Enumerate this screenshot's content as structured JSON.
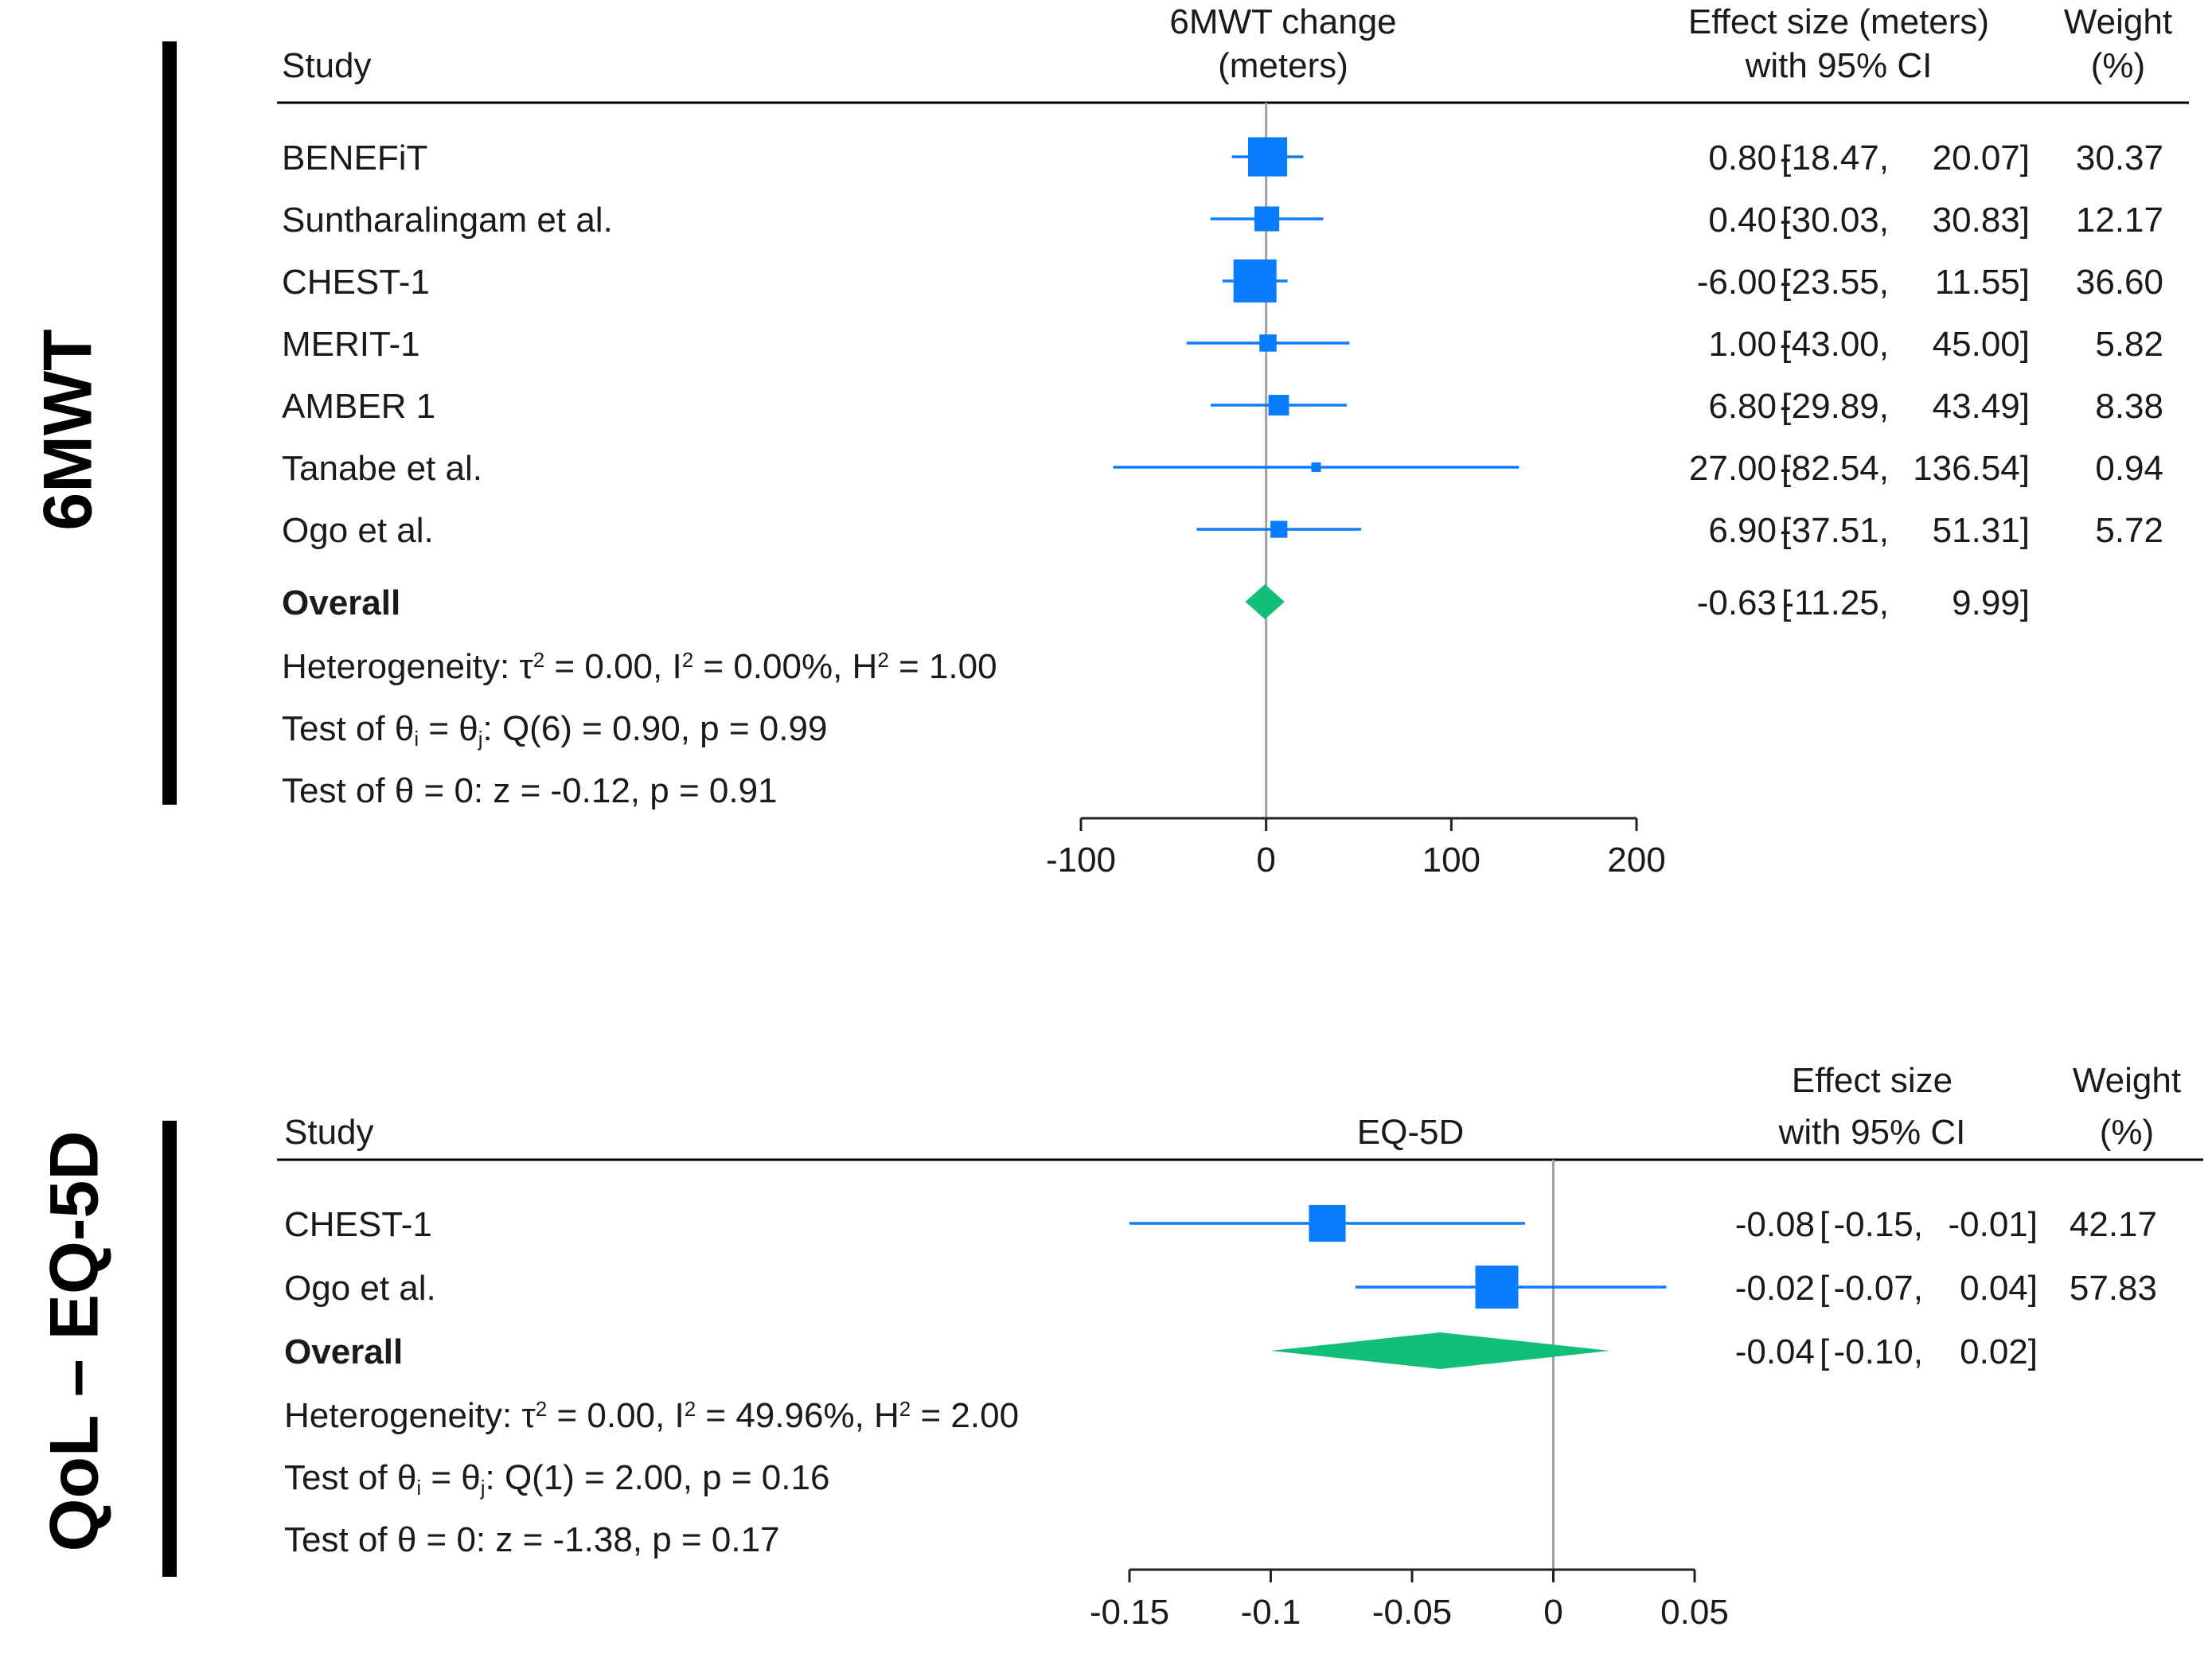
{
  "colors": {
    "square": "#0a7cff",
    "ci_line": "#0a7cff",
    "overall_diamond": "#12bf79",
    "axis": "#222222",
    "reference_line": "#a0a0a0",
    "side_bar": "#000000"
  },
  "chart_data": [
    {
      "type": "forest",
      "panel_label": "6MWT",
      "header": {
        "study": "Study",
        "plot_title_1": "6MWT change",
        "plot_title_2": "(meters)",
        "effect_1": "Effect size (meters)",
        "effect_2": "with 95% CI",
        "weight_1": "Weight",
        "weight_2": "(%)"
      },
      "xlim": [
        -100,
        200
      ],
      "ticks": [
        -100,
        0,
        100,
        200
      ],
      "tick_labels": [
        "-100",
        "0",
        "100",
        "200"
      ],
      "null_value": 0,
      "studies": [
        {
          "name": "BENEFiT",
          "est": 0.8,
          "lo": -18.47,
          "hi": 20.07,
          "weight": 30.37,
          "est_text": "0.80",
          "lo_text": "-18.47,",
          "hi_text": "20.07]",
          "weight_text": "30.37"
        },
        {
          "name": "Suntharalingam et al.",
          "est": 0.4,
          "lo": -30.03,
          "hi": 30.83,
          "weight": 12.17,
          "est_text": "0.40",
          "lo_text": "-30.03,",
          "hi_text": "30.83]",
          "weight_text": "12.17"
        },
        {
          "name": "CHEST-1",
          "est": -6.0,
          "lo": -23.55,
          "hi": 11.55,
          "weight": 36.6,
          "est_text": "-6.00",
          "lo_text": "-23.55,",
          "hi_text": "11.55]",
          "weight_text": "36.60"
        },
        {
          "name": "MERIT-1",
          "est": 1.0,
          "lo": -43.0,
          "hi": 45.0,
          "weight": 5.82,
          "est_text": "1.00",
          "lo_text": "-43.00,",
          "hi_text": "45.00]",
          "weight_text": "5.82"
        },
        {
          "name": "AMBER 1",
          "est": 6.8,
          "lo": -29.89,
          "hi": 43.49,
          "weight": 8.38,
          "est_text": "6.80",
          "lo_text": "-29.89,",
          "hi_text": "43.49]",
          "weight_text": "8.38"
        },
        {
          "name": "Tanabe et al.",
          "est": 27.0,
          "lo": -82.54,
          "hi": 136.54,
          "weight": 0.94,
          "est_text": "27.00",
          "lo_text": "-82.54,",
          "hi_text": "136.54]",
          "weight_text": "0.94"
        },
        {
          "name": "Ogo et al.",
          "est": 6.9,
          "lo": -37.51,
          "hi": 51.31,
          "weight": 5.72,
          "est_text": "6.90",
          "lo_text": "-37.51,",
          "hi_text": "51.31]",
          "weight_text": "5.72"
        }
      ],
      "overall": {
        "label": "Overall",
        "est": -0.63,
        "lo": -11.25,
        "hi": 9.99,
        "est_text": "-0.63",
        "lo_text": "-11.25,",
        "hi_text": "9.99]"
      },
      "stats": {
        "heterogeneity": {
          "prefix": "Heterogeneity: τ",
          "tau2": " = 0.00, I",
          "i2": " = 0.00%, H",
          "h2": " = 1.00"
        },
        "test_equal": {
          "prefix": "Test of θ",
          "sub_i": "i",
          "middle": " = θ",
          "sub_j": "j",
          "suffix": ": Q(6) = 0.90, p = 0.99"
        },
        "test_zero": "Test of θ = 0: z = -0.12, p = 0.91"
      }
    },
    {
      "type": "forest",
      "panel_label": "QoL – EQ-5D",
      "header": {
        "study": "Study",
        "plot_title": "EQ-5D",
        "effect_1": "Effect size",
        "effect_2": "with 95% CI",
        "weight_1": "Weight",
        "weight_2": "(%)"
      },
      "xlim": [
        -0.15,
        0.05
      ],
      "ticks": [
        -0.15,
        -0.1,
        -0.05,
        0,
        0.05
      ],
      "tick_labels": [
        "-0.15",
        "-0.1",
        "-0.05",
        "0",
        "0.05"
      ],
      "null_value": 0,
      "studies": [
        {
          "name": "CHEST-1",
          "est": -0.08,
          "lo": -0.15,
          "hi": -0.01,
          "weight": 42.17,
          "est_text": "-0.08",
          "lo_text": "-0.15,",
          "hi_text": "-0.01]",
          "weight_text": "42.17"
        },
        {
          "name": "Ogo et al.",
          "est": -0.02,
          "lo": -0.07,
          "hi": 0.04,
          "weight": 57.83,
          "est_text": "-0.02",
          "lo_text": "-0.07,",
          "hi_text": "0.04]",
          "weight_text": "57.83"
        }
      ],
      "overall": {
        "label": "Overall",
        "est": -0.04,
        "lo": -0.1,
        "hi": 0.02,
        "est_text": "-0.04",
        "lo_text": "-0.10,",
        "hi_text": "0.02]"
      },
      "stats": {
        "heterogeneity": {
          "prefix": "Heterogeneity: τ",
          "tau2": " = 0.00, I",
          "i2": " = 49.96%, H",
          "h2": " = 2.00"
        },
        "test_equal": {
          "prefix": "Test of θ",
          "sub_i": "i",
          "middle": " = θ",
          "sub_j": "j",
          "suffix": ": Q(1) = 2.00, p = 0.16"
        },
        "test_zero": "Test of θ = 0: z = -1.38, p = 0.17"
      }
    }
  ]
}
